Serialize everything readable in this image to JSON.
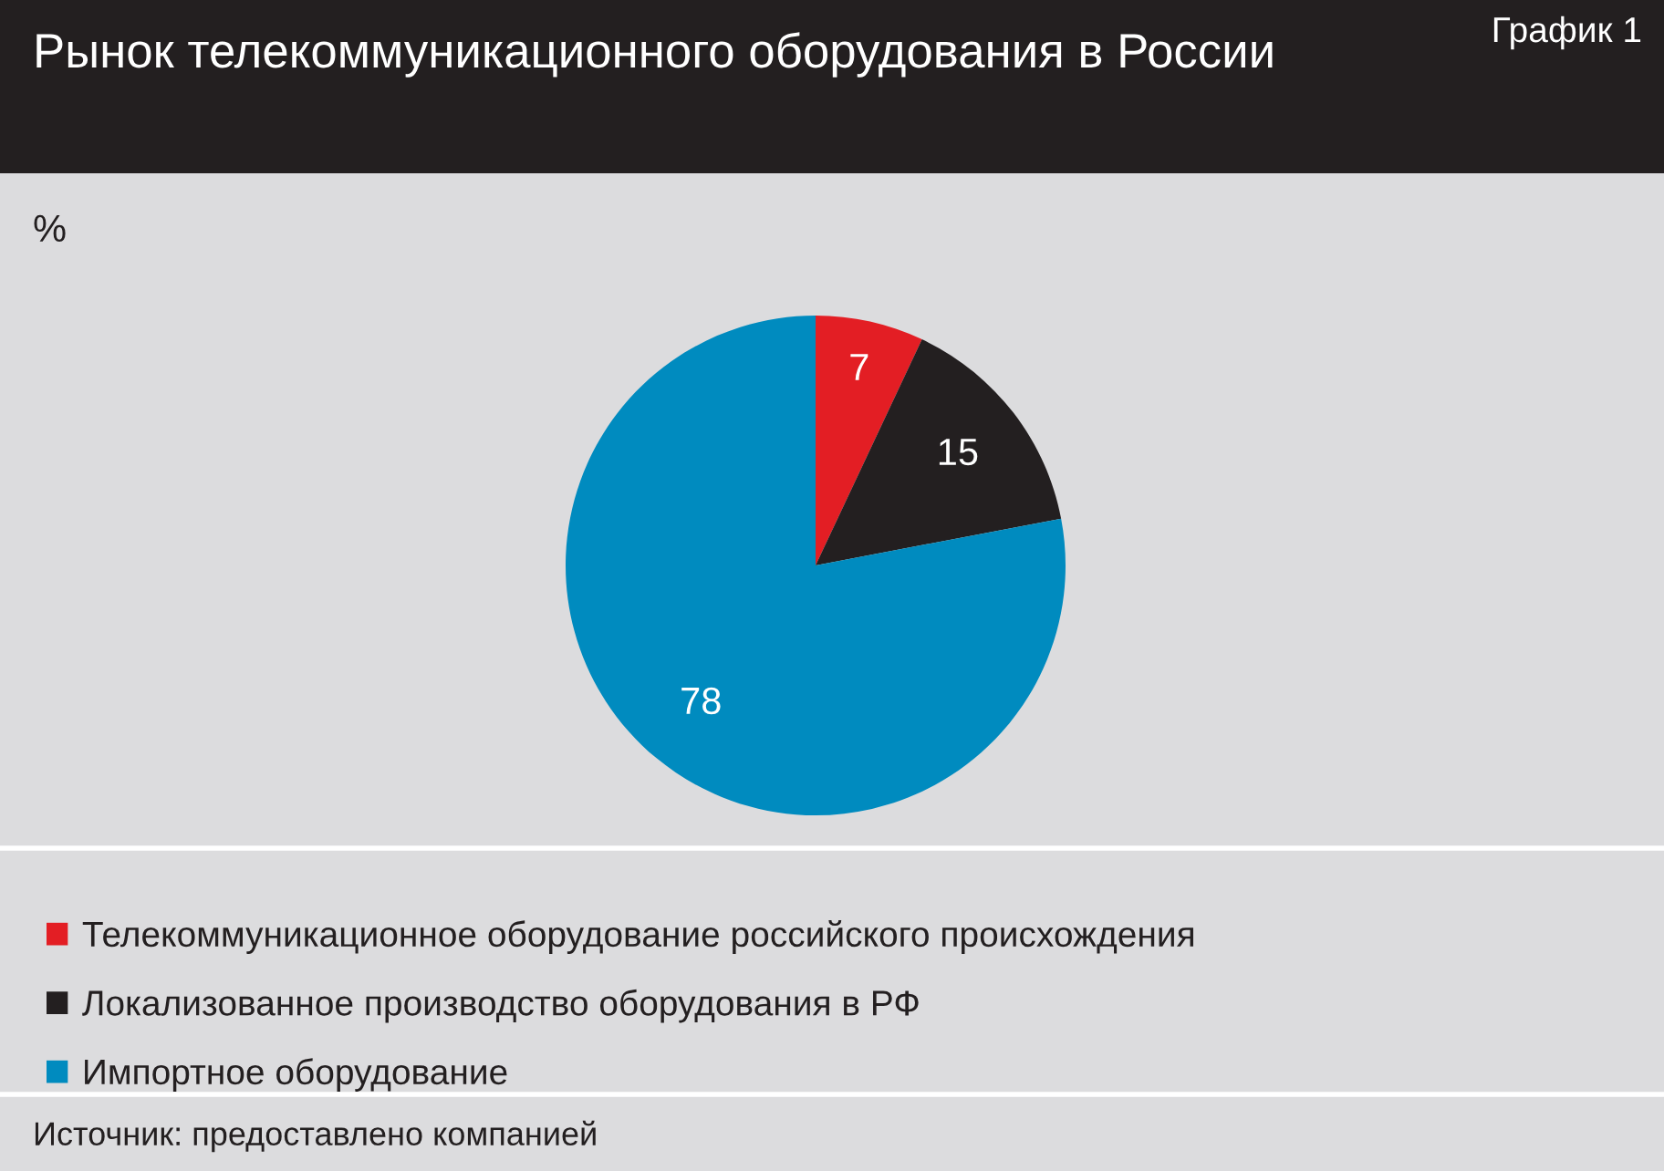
{
  "chart_data": {
    "type": "pie",
    "title": "Рынок телекоммуникационного оборудования в России",
    "subtitle": "%",
    "categories": [
      "Телекоммуникационное оборудование российского происхождения",
      "Локализованное производство оборудования в РФ",
      "Импортное оборудование"
    ],
    "values": [
      7,
      15,
      78
    ],
    "colors": [
      "#e31e24",
      "#231f20",
      "#008bbf"
    ],
    "data_labels": true,
    "legend": "bottom",
    "annotations": [
      "График 1",
      "Источник: предоставлено компанией"
    ]
  }
}
